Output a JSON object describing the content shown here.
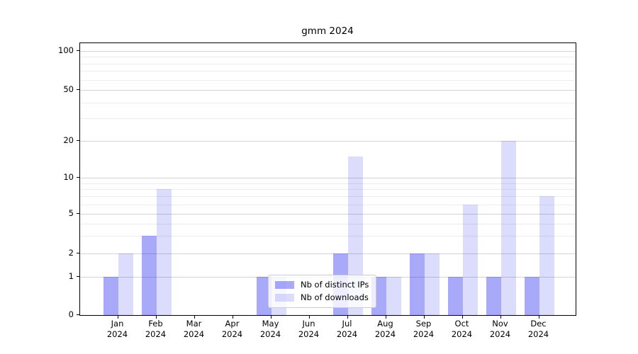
{
  "chart_data": {
    "type": "bar",
    "title": "gmm 2024",
    "categories": [
      "Jan",
      "Feb",
      "Mar",
      "Apr",
      "May",
      "Jun",
      "Jul",
      "Aug",
      "Sep",
      "Oct",
      "Nov",
      "Dec"
    ],
    "year_label": "2024",
    "series": [
      {
        "name": "Nb of distinct IPs",
        "color": "rgba(10,10,240,0.35)",
        "values": [
          1,
          3,
          0,
          0,
          1,
          0,
          2,
          1,
          2,
          1,
          1,
          1
        ]
      },
      {
        "name": "Nb of downloads",
        "color": "rgba(10,10,240,0.14)",
        "values": [
          2,
          8,
          0,
          0,
          1,
          0,
          15,
          1,
          2,
          6,
          20,
          7
        ]
      }
    ],
    "ylabel": "",
    "xlabel": "",
    "yticks": [
      0,
      1,
      2,
      5,
      10,
      20,
      50,
      100
    ],
    "minor_yticks": [
      3,
      4,
      6,
      7,
      8,
      9,
      30,
      40,
      60,
      70,
      80,
      90
    ],
    "ylim": [
      0,
      115
    ],
    "scale": "symlog",
    "scale_anchors": [
      [
        0,
        383.5
      ],
      [
        1,
        330
      ],
      [
        2,
        297
      ],
      [
        5,
        241
      ],
      [
        10,
        190
      ],
      [
        20,
        138
      ],
      [
        50,
        66
      ],
      [
        100,
        11
      ]
    ],
    "grid": "on",
    "legend_position": "lower-center"
  }
}
